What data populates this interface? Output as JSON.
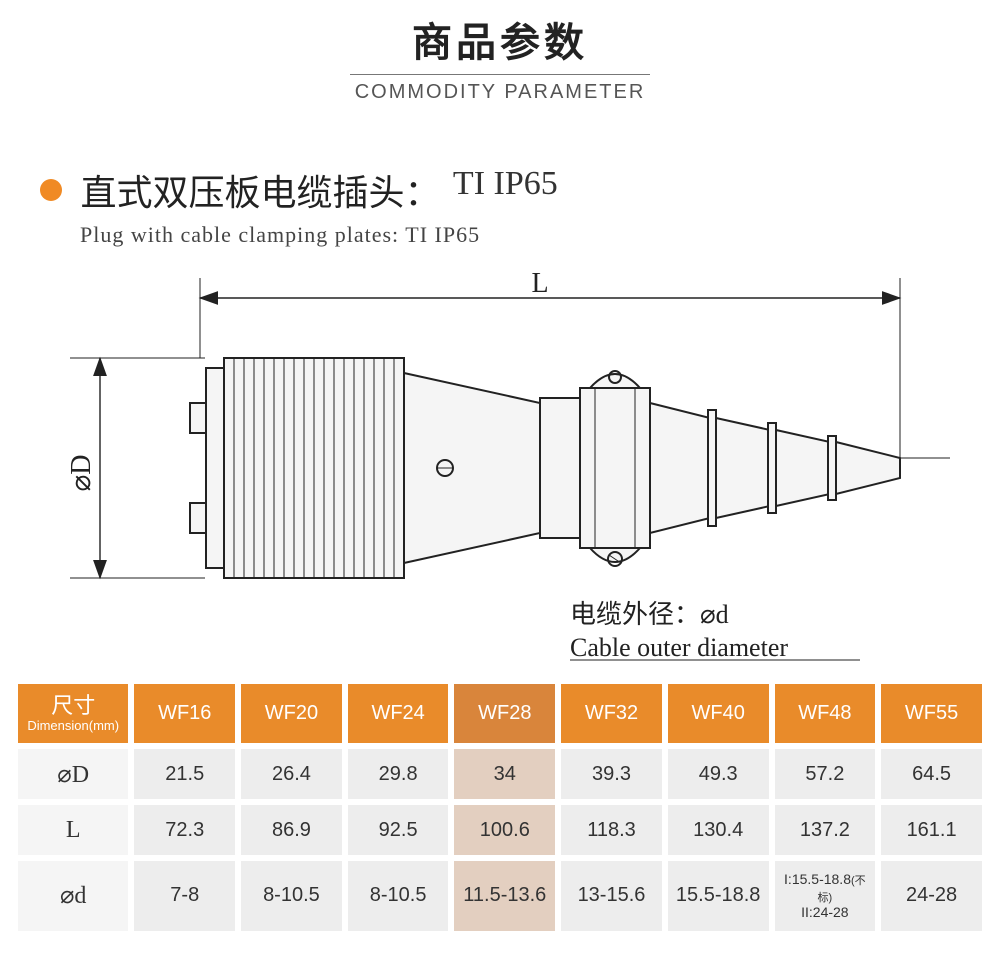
{
  "title": {
    "cn": "商品参数",
    "en": "COMMODITY PARAMETER"
  },
  "section": {
    "title_cn": "直式双压板电缆插头：",
    "title_code": "TI  IP65",
    "title_en": "Plug with cable clamping plates: TI  IP65"
  },
  "diagram": {
    "label_L": "L",
    "label_D": "⌀D",
    "cable_label_cn": "电缆外径：⌀d",
    "cable_label_en": "Cable outer diameter",
    "colors": {
      "line": "#222222",
      "fill": "#f5f5f5"
    }
  },
  "table": {
    "hl_col": 4,
    "header": {
      "dim_cn": "尺寸",
      "dim_en": "Dimension(mm)",
      "cols": [
        "WF16",
        "WF20",
        "WF24",
        "WF28",
        "WF32",
        "WF40",
        "WF48",
        "WF55"
      ]
    },
    "rows": [
      {
        "label": "⌀D",
        "cells": [
          "21.5",
          "26.4",
          "29.8",
          "34",
          "39.3",
          "49.3",
          "57.2",
          "64.5"
        ]
      },
      {
        "label": "L",
        "cells": [
          "72.3",
          "86.9",
          "92.5",
          "100.6",
          "118.3",
          "130.4",
          "137.2",
          "161.1"
        ]
      },
      {
        "label": "⌀d",
        "cells": [
          "7-8",
          "8-10.5",
          "8-10.5",
          "11.5-13.6",
          "13-15.6",
          "15.5-18.8",
          "I:15.5-18.8(不标)\nII:24-28",
          "24-28"
        ]
      }
    ],
    "colors": {
      "header_bg": "#e98b2a",
      "header_hl_bg": "#d9853b",
      "cell_bg": "#ededed",
      "cell_hl_bg": "#e3cfc0",
      "rowhead_bg": "#f5f5f5",
      "border": "#ffffff"
    }
  }
}
